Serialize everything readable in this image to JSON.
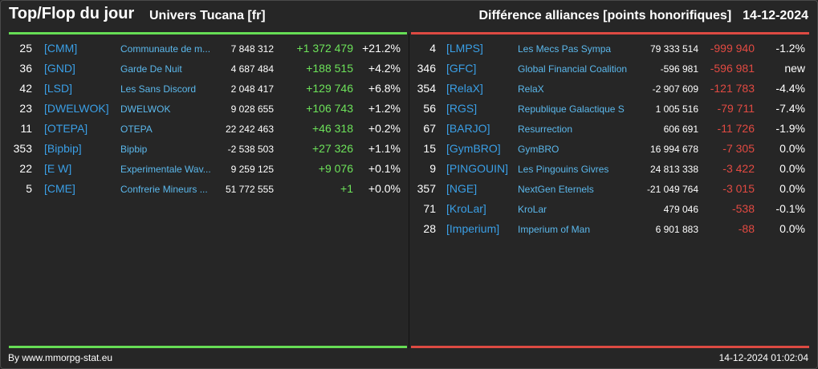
{
  "header": {
    "title": "Top/Flop du jour",
    "universe": "Univers Tucana [fr]",
    "subtitle": "Différence alliances [points honorifiques]",
    "date": "14-12-2024"
  },
  "colors": {
    "accent_positive": "#66dd55",
    "accent_negative": "#dd4a42",
    "tag": "#3a9fe6",
    "background": "#262626"
  },
  "top": [
    {
      "rank": "25",
      "tag": "[CMM]",
      "name": "Communaute de m...",
      "points": "7 848 312",
      "diff": "+1 372 479",
      "pct": "+21.2%"
    },
    {
      "rank": "36",
      "tag": "[GND]",
      "name": "Garde De Nuit",
      "points": "4 687 484",
      "diff": "+188 515",
      "pct": "+4.2%"
    },
    {
      "rank": "42",
      "tag": "[LSD]",
      "name": "Les Sans Discord",
      "points": "2 048 417",
      "diff": "+129 746",
      "pct": "+6.8%"
    },
    {
      "rank": "23",
      "tag": "[DWELWOK]",
      "name": "DWELWOK",
      "points": "9 028 655",
      "diff": "+106 743",
      "pct": "+1.2%"
    },
    {
      "rank": "11",
      "tag": "[OTEPA]",
      "name": "OTEPA",
      "points": "22 242 463",
      "diff": "+46 318",
      "pct": "+0.2%"
    },
    {
      "rank": "353",
      "tag": "[Bipbip]",
      "name": "Bipbip",
      "points": "-2 538 503",
      "diff": "+27 326",
      "pct": "+1.1%"
    },
    {
      "rank": "22",
      "tag": "[E W]",
      "name": "Experimentale Wav...",
      "points": "9 259 125",
      "diff": "+9 076",
      "pct": "+0.1%"
    },
    {
      "rank": "5",
      "tag": "[CME]",
      "name": "Confrerie Mineurs ...",
      "points": "51 772 555",
      "diff": "+1",
      "pct": "+0.0%"
    }
  ],
  "flop": [
    {
      "rank": "4",
      "tag": "[LMPS]",
      "name": "Les Mecs Pas Sympa",
      "points": "79 333 514",
      "diff": "-999 940",
      "pct": "-1.2%"
    },
    {
      "rank": "346",
      "tag": "[GFC]",
      "name": "Global Financial Coalition",
      "points": "-596 981",
      "diff": "-596 981",
      "pct": "new"
    },
    {
      "rank": "354",
      "tag": "[RelaX]",
      "name": "RelaX",
      "points": "-2 907 609",
      "diff": "-121 783",
      "pct": "-4.4%"
    },
    {
      "rank": "56",
      "tag": "[RGS]",
      "name": "Republique Galactique S",
      "points": "1 005 516",
      "diff": "-79 711",
      "pct": "-7.4%"
    },
    {
      "rank": "67",
      "tag": "[BARJO]",
      "name": "Resurrection",
      "points": "606 691",
      "diff": "-11 726",
      "pct": "-1.9%"
    },
    {
      "rank": "15",
      "tag": "[GymBRO]",
      "name": "GymBRO",
      "points": "16 994 678",
      "diff": "-7 305",
      "pct": "0.0%"
    },
    {
      "rank": "9",
      "tag": "[PINGOUIN]",
      "name": "Les Pingouins Givres",
      "points": "24 813 338",
      "diff": "-3 422",
      "pct": "0.0%"
    },
    {
      "rank": "357",
      "tag": "[NGE]",
      "name": "NextGen Eternels",
      "points": "-21 049 764",
      "diff": "-3 015",
      "pct": "0.0%"
    },
    {
      "rank": "71",
      "tag": "[KroLar]",
      "name": "KroLar",
      "points": "479 046",
      "diff": "-538",
      "pct": "-0.1%"
    },
    {
      "rank": "28",
      "tag": "[Imperium]",
      "name": "Imperium of Man",
      "points": "6 901 883",
      "diff": "-88",
      "pct": "0.0%"
    }
  ],
  "footer": {
    "credit": "By www.mmorpg-stat.eu",
    "timestamp": "14-12-2024 01:02:04"
  }
}
